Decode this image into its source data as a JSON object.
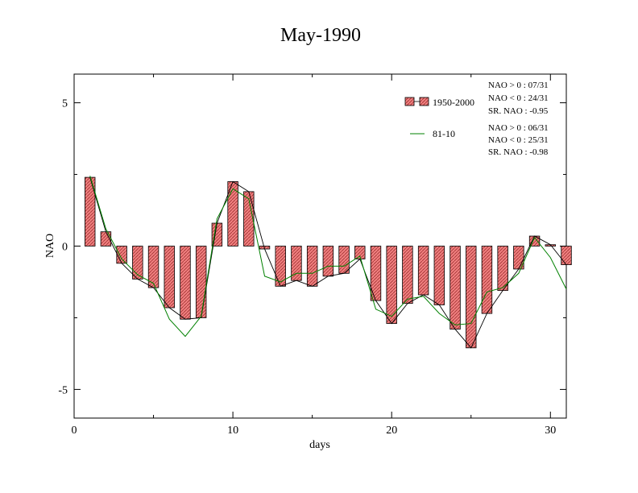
{
  "chart_data": {
    "type": "bar",
    "title": "May-1990",
    "xlabel": "days",
    "ylabel": "NAO",
    "xlim": [
      0,
      31
    ],
    "ylim": [
      -6,
      6
    ],
    "x_ticks": [
      0,
      10,
      20,
      30
    ],
    "y_ticks": [
      -5,
      0,
      5
    ],
    "x": [
      1,
      2,
      3,
      4,
      5,
      6,
      7,
      8,
      9,
      10,
      11,
      12,
      13,
      14,
      15,
      16,
      17,
      18,
      19,
      20,
      21,
      22,
      23,
      24,
      25,
      26,
      27,
      28,
      29,
      30,
      31
    ],
    "series": [
      {
        "name": "1950-2000",
        "kind": "bar",
        "color": "#f08080",
        "values": [
          2.4,
          0.5,
          -0.6,
          -1.15,
          -1.45,
          -2.15,
          -2.55,
          -2.5,
          0.8,
          2.25,
          1.9,
          -0.1,
          -1.4,
          -1.2,
          -1.4,
          -1.05,
          -0.95,
          -0.45,
          -1.9,
          -2.7,
          -2.0,
          -1.7,
          -2.05,
          -2.9,
          -3.55,
          -2.35,
          -1.55,
          -0.8,
          0.35,
          0.05,
          -0.65
        ]
      },
      {
        "name": "81-10",
        "kind": "line",
        "color": "#008000",
        "values": [
          2.45,
          0.6,
          -0.45,
          -1.0,
          -1.3,
          -2.55,
          -3.15,
          -2.45,
          0.95,
          2.0,
          1.65,
          -1.05,
          -1.25,
          -0.95,
          -0.95,
          -0.7,
          -0.7,
          -0.35,
          -2.2,
          -2.45,
          -1.85,
          -1.75,
          -2.35,
          -2.75,
          -2.7,
          -1.6,
          -1.45,
          -0.95,
          0.3,
          -0.4,
          -1.5
        ]
      }
    ],
    "legend_position": "top-right",
    "stats": [
      [
        "NAO > 0 : 07/31",
        "NAO < 0 : 24/31",
        "SR. NAO : -0.95"
      ],
      [
        "NAO > 0 : 06/31",
        "NAO < 0 : 25/31",
        "SR. NAO : -0.98"
      ]
    ]
  }
}
